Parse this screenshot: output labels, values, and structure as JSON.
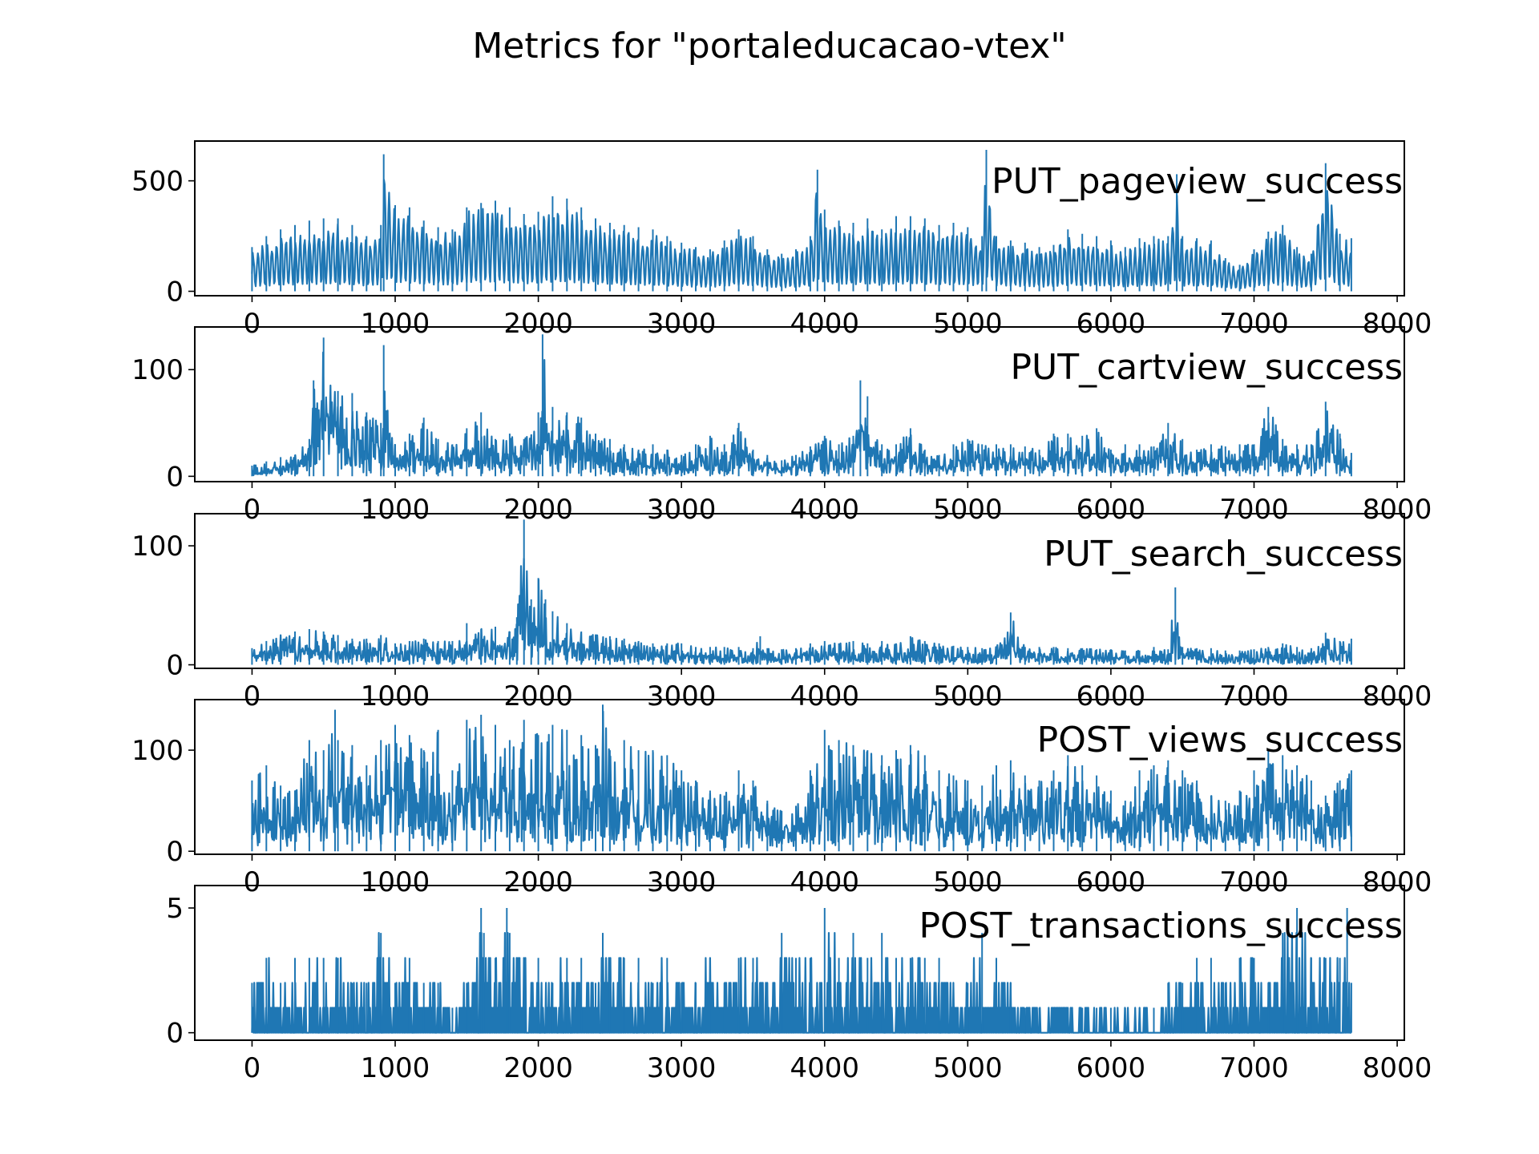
{
  "title": "Metrics for \"portaleducacao-vtex\"",
  "colors": {
    "line": "#1f77b4",
    "axes": "#000000",
    "background": "#ffffff"
  },
  "chart_data": [
    {
      "type": "line",
      "label": "PUT_pageview_success",
      "xlim": [
        -400,
        8050
      ],
      "ylim": [
        -20,
        680
      ],
      "xticks": [
        0,
        1000,
        2000,
        3000,
        4000,
        5000,
        6000,
        7000,
        8000
      ],
      "yticks": [
        0,
        500
      ],
      "grid": false,
      "series": [
        {
          "x": [
            0,
            100,
            200,
            300,
            400,
            500,
            600,
            700,
            800,
            900,
            920,
            1000,
            1100,
            1200,
            1300,
            1400,
            1500,
            1600,
            1700,
            1800,
            1900,
            2000,
            2100,
            2200,
            2300,
            2400,
            2500,
            2600,
            2700,
            2800,
            2900,
            3000,
            3100,
            3200,
            3300,
            3400,
            3500,
            3600,
            3700,
            3800,
            3900,
            3950,
            4000,
            4100,
            4200,
            4300,
            4400,
            4500,
            4600,
            4700,
            4800,
            4900,
            5000,
            5100,
            5130,
            5200,
            5300,
            5400,
            5500,
            5600,
            5700,
            5800,
            5900,
            6000,
            6100,
            6200,
            6300,
            6400,
            6460,
            6500,
            6600,
            6700,
            6800,
            6900,
            7000,
            7100,
            7200,
            7300,
            7400,
            7500,
            7600,
            7680
          ],
          "values": [
            200,
            250,
            280,
            300,
            320,
            330,
            330,
            300,
            250,
            300,
            620,
            390,
            380,
            320,
            290,
            280,
            380,
            400,
            410,
            380,
            350,
            360,
            430,
            420,
            380,
            330,
            310,
            300,
            290,
            280,
            250,
            220,
            200,
            190,
            230,
            280,
            250,
            190,
            170,
            190,
            250,
            550,
            370,
            320,
            310,
            330,
            280,
            340,
            340,
            330,
            300,
            310,
            290,
            250,
            640,
            250,
            230,
            220,
            200,
            210,
            280,
            260,
            250,
            230,
            200,
            240,
            250,
            250,
            530,
            250,
            240,
            230,
            150,
            120,
            190,
            270,
            300,
            200,
            170,
            580,
            260,
            240
          ]
        }
      ]
    },
    {
      "type": "line",
      "label": "PUT_cartview_success",
      "xlim": [
        -400,
        8050
      ],
      "ylim": [
        -5,
        140
      ],
      "xticks": [
        0,
        1000,
        2000,
        3000,
        4000,
        5000,
        6000,
        7000,
        8000
      ],
      "yticks": [
        0,
        100
      ],
      "grid": false,
      "series": [
        {
          "x": [
            0,
            100,
            200,
            300,
            400,
            430,
            500,
            600,
            700,
            800,
            900,
            920,
            1000,
            1100,
            1200,
            1300,
            1400,
            1500,
            1600,
            1700,
            1800,
            1900,
            2000,
            2030,
            2100,
            2200,
            2300,
            2400,
            2500,
            2600,
            2700,
            2800,
            2900,
            3000,
            3100,
            3200,
            3300,
            3400,
            3500,
            3600,
            3700,
            3800,
            3900,
            4000,
            4100,
            4200,
            4250,
            4300,
            4400,
            4500,
            4600,
            4700,
            4800,
            4900,
            5000,
            5100,
            5200,
            5300,
            5400,
            5500,
            5600,
            5700,
            5800,
            5900,
            6000,
            6100,
            6200,
            6300,
            6400,
            6500,
            6600,
            6700,
            6800,
            6900,
            7000,
            7100,
            7200,
            7300,
            7400,
            7500,
            7600,
            7680
          ],
          "values": [
            10,
            14,
            18,
            20,
            35,
            90,
            130,
            80,
            78,
            60,
            50,
            123,
            30,
            40,
            55,
            35,
            30,
            45,
            60,
            35,
            40,
            35,
            60,
            133,
            65,
            60,
            55,
            40,
            35,
            30,
            25,
            30,
            25,
            20,
            30,
            38,
            30,
            50,
            25,
            20,
            15,
            20,
            28,
            38,
            30,
            38,
            90,
            75,
            30,
            30,
            45,
            25,
            20,
            30,
            35,
            30,
            30,
            30,
            28,
            25,
            40,
            40,
            38,
            45,
            25,
            30,
            30,
            28,
            50,
            35,
            25,
            30,
            28,
            30,
            30,
            65,
            35,
            30,
            30,
            70,
            40,
            22
          ]
        }
      ]
    },
    {
      "type": "line",
      "label": "PUT_search_success",
      "xlim": [
        -400,
        8050
      ],
      "ylim": [
        -3,
        127
      ],
      "xticks": [
        0,
        1000,
        2000,
        3000,
        4000,
        5000,
        6000,
        7000,
        8000
      ],
      "yticks": [
        0,
        100
      ],
      "grid": false,
      "series": [
        {
          "x": [
            0,
            100,
            200,
            300,
            400,
            500,
            600,
            700,
            800,
            900,
            1000,
            1100,
            1200,
            1300,
            1400,
            1500,
            1600,
            1700,
            1800,
            1850,
            1900,
            1950,
            2000,
            2050,
            2100,
            2200,
            2300,
            2400,
            2500,
            2600,
            2700,
            2800,
            2900,
            3000,
            3100,
            3200,
            3300,
            3400,
            3500,
            3550,
            3600,
            3700,
            3800,
            3900,
            4000,
            4100,
            4200,
            4300,
            4400,
            4500,
            4600,
            4700,
            4800,
            4900,
            5000,
            5100,
            5200,
            5300,
            5400,
            5500,
            5600,
            5700,
            5800,
            5900,
            6000,
            6100,
            6200,
            6300,
            6400,
            6450,
            6500,
            6600,
            6700,
            6800,
            6900,
            7000,
            7100,
            7200,
            7300,
            7400,
            7500,
            7600,
            7680
          ],
          "values": [
            14,
            20,
            25,
            28,
            30,
            28,
            25,
            22,
            22,
            25,
            18,
            20,
            22,
            20,
            20,
            35,
            30,
            32,
            28,
            40,
            122,
            55,
            73,
            55,
            45,
            35,
            28,
            25,
            24,
            22,
            20,
            18,
            18,
            18,
            15,
            15,
            15,
            15,
            14,
            24,
            14,
            13,
            14,
            18,
            20,
            18,
            20,
            18,
            20,
            18,
            24,
            20,
            18,
            16,
            15,
            14,
            15,
            44,
            15,
            15,
            15,
            14,
            14,
            13,
            13,
            12,
            12,
            15,
            13,
            65,
            15,
            14,
            14,
            12,
            12,
            13,
            15,
            18,
            15,
            14,
            27,
            20,
            22
          ]
        }
      ]
    },
    {
      "type": "line",
      "label": "POST_views_success",
      "xlim": [
        -400,
        8050
      ],
      "ylim": [
        -3,
        150
      ],
      "xticks": [
        0,
        1000,
        2000,
        3000,
        4000,
        5000,
        6000,
        7000,
        8000
      ],
      "yticks": [
        0,
        100
      ],
      "grid": false,
      "series": [
        {
          "x": [
            0,
            100,
            200,
            300,
            400,
            500,
            580,
            600,
            700,
            800,
            900,
            1000,
            1100,
            1200,
            1300,
            1400,
            1500,
            1600,
            1700,
            1800,
            1900,
            2000,
            2100,
            2200,
            2300,
            2400,
            2450,
            2500,
            2600,
            2700,
            2800,
            2900,
            3000,
            3100,
            3200,
            3300,
            3400,
            3500,
            3600,
            3700,
            3800,
            3900,
            4000,
            4100,
            4200,
            4300,
            4400,
            4500,
            4600,
            4700,
            4800,
            4900,
            5000,
            5100,
            5200,
            5300,
            5400,
            5500,
            5600,
            5700,
            5800,
            5900,
            6000,
            6100,
            6200,
            6300,
            6400,
            6500,
            6600,
            6700,
            6800,
            6900,
            7000,
            7100,
            7200,
            7300,
            7400,
            7500,
            7600,
            7680
          ],
          "values": [
            70,
            85,
            65,
            60,
            110,
            100,
            140,
            110,
            105,
            85,
            110,
            125,
            115,
            100,
            120,
            80,
            130,
            135,
            125,
            110,
            130,
            115,
            125,
            120,
            115,
            105,
            145,
            100,
            110,
            100,
            100,
            95,
            80,
            70,
            60,
            55,
            80,
            70,
            50,
            40,
            45,
            80,
            120,
            110,
            105,
            100,
            95,
            100,
            105,
            95,
            80,
            75,
            70,
            65,
            85,
            90,
            75,
            70,
            80,
            95,
            85,
            75,
            60,
            50,
            80,
            85,
            90,
            80,
            70,
            55,
            50,
            60,
            80,
            100,
            95,
            85,
            70,
            55,
            70,
            80
          ]
        }
      ]
    },
    {
      "type": "line",
      "label": "POST_transactions_success",
      "xlim": [
        -400,
        8050
      ],
      "ylim": [
        -0.3,
        5.9
      ],
      "xticks": [
        0,
        1000,
        2000,
        3000,
        4000,
        5000,
        6000,
        7000,
        8000
      ],
      "yticks": [
        0,
        5
      ],
      "grid": false,
      "series": [
        {
          "x": [
            0,
            100,
            200,
            300,
            400,
            500,
            600,
            700,
            800,
            900,
            1000,
            1100,
            1200,
            1300,
            1400,
            1500,
            1600,
            1620,
            1700,
            1780,
            1800,
            1900,
            2000,
            2100,
            2200,
            2300,
            2400,
            2450,
            2500,
            2600,
            2700,
            2800,
            2900,
            3000,
            3100,
            3200,
            3300,
            3400,
            3500,
            3600,
            3700,
            3800,
            3900,
            4000,
            4100,
            4200,
            4300,
            4400,
            4500,
            4600,
            4700,
            4800,
            4900,
            5000,
            5100,
            5200,
            5300,
            5400,
            5500,
            5600,
            5700,
            5800,
            5900,
            6000,
            6100,
            6200,
            6300,
            6400,
            6500,
            6600,
            6700,
            6800,
            6900,
            7000,
            7100,
            7200,
            7300,
            7400,
            7500,
            7600,
            7650,
            7680
          ],
          "values": [
            2,
            3,
            2,
            3,
            3,
            3,
            3,
            2,
            2,
            4,
            2,
            3,
            2,
            2,
            1,
            2,
            5,
            4,
            3,
            5,
            4,
            3,
            3,
            2,
            3,
            3,
            2,
            4,
            3,
            3,
            3,
            2,
            3,
            2,
            2,
            3,
            2,
            3,
            3,
            2,
            4,
            3,
            3,
            5,
            3,
            4,
            3,
            4,
            3,
            3,
            3,
            3,
            2,
            2,
            4,
            3,
            2,
            1,
            1,
            1,
            1,
            1,
            1,
            1,
            1,
            1,
            1,
            2,
            2,
            3,
            3,
            2,
            3,
            3,
            2,
            4,
            5,
            3,
            3,
            3,
            5,
            2
          ]
        }
      ]
    }
  ]
}
